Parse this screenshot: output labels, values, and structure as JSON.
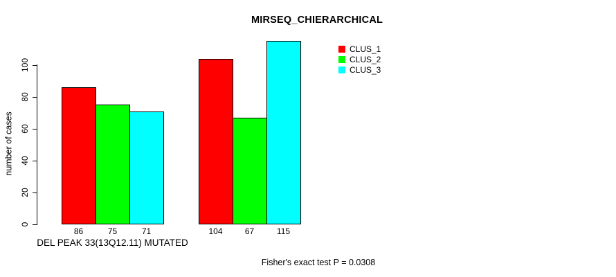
{
  "chart_data": {
    "type": "bar",
    "title": "MIRSEQ_CHIERARCHICAL",
    "ylabel": "number of cases",
    "xlabel": "DEL PEAK 33(13Q12.11) MUTATED",
    "annotation": "Fisher's exact test P = 0.0308",
    "group_count": 2,
    "series": [
      {
        "name": "CLUS_1",
        "color": "#FF0000",
        "values": [
          86,
          104
        ]
      },
      {
        "name": "CLUS_2",
        "color": "#00FF00",
        "values": [
          75,
          67
        ]
      },
      {
        "name": "CLUS_3",
        "color": "#00FFFF",
        "values": [
          71,
          115
        ]
      }
    ],
    "show_values_under_bars": true,
    "yticks": [
      0,
      20,
      40,
      60,
      80,
      100
    ],
    "ylim": [
      0,
      115
    ],
    "grid": false,
    "legend_position": "top-right",
    "background_color": "#FFFFFF",
    "text_color": "#000000",
    "bar_border_color": "#000000"
  }
}
